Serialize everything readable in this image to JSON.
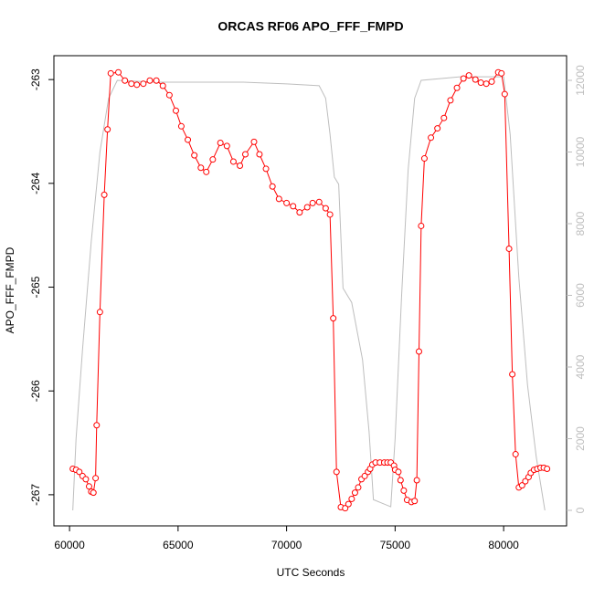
{
  "chart_data": {
    "type": "line",
    "title": "ORCAS RF06 APO_FFF_FMPD",
    "x_label": "UTC Seconds",
    "y_label": "APO_FFF_FMPD",
    "xlim": [
      59280,
      82900
    ],
    "xticks": [
      60000,
      65000,
      70000,
      75000,
      80000
    ],
    "ylim": [
      -267.3,
      -262.77
    ],
    "yticks": [
      -267,
      -266,
      -265,
      -264,
      -263
    ],
    "y2lim": [
      -433,
      12688
    ],
    "y2ticks": [
      0,
      2000,
      4000,
      6000,
      8000,
      10000,
      12000
    ],
    "series": [
      {
        "name": "APO_FFF_FMPD",
        "color": "#ff0000",
        "marker": "circle",
        "x": [
          60150,
          60300,
          60450,
          60600,
          60750,
          60900,
          61000,
          61100,
          61200,
          61250,
          61400,
          61600,
          61750,
          61900,
          62250,
          62550,
          62850,
          63100,
          63400,
          63700,
          64000,
          64300,
          64600,
          64900,
          65150,
          65450,
          65750,
          66050,
          66300,
          66600,
          66950,
          67250,
          67550,
          67850,
          68100,
          68500,
          68750,
          69050,
          69350,
          69650,
          70000,
          70300,
          70600,
          70950,
          71200,
          71500,
          71800,
          72000,
          72150,
          72300,
          72500,
          72700,
          72850,
          73000,
          73150,
          73300,
          73450,
          73600,
          73750,
          73850,
          73950,
          74100,
          74300,
          74500,
          74650,
          74800,
          74950,
          75000,
          75150,
          75250,
          75400,
          75550,
          75750,
          75900,
          76000,
          76100,
          76200,
          76350,
          76650,
          76950,
          77250,
          77550,
          77850,
          78150,
          78400,
          78700,
          78950,
          79200,
          79450,
          79750,
          79900,
          80050,
          80250,
          80400,
          80550,
          80700,
          80850,
          81000,
          81150,
          81250,
          81400,
          81550,
          81700,
          81850,
          82000
        ],
        "values": [
          -266.75,
          -266.76,
          -266.78,
          -266.82,
          -266.85,
          -266.92,
          -266.97,
          -266.98,
          -266.84,
          -266.33,
          -265.24,
          -264.11,
          -263.48,
          -262.94,
          -262.93,
          -263.01,
          -263.04,
          -263.05,
          -263.04,
          -263.01,
          -263.01,
          -263.06,
          -263.15,
          -263.3,
          -263.45,
          -263.58,
          -263.73,
          -263.85,
          -263.89,
          -263.77,
          -263.61,
          -263.64,
          -263.79,
          -263.83,
          -263.72,
          -263.6,
          -263.72,
          -263.86,
          -264.03,
          -264.15,
          -264.19,
          -264.22,
          -264.28,
          -264.23,
          -264.19,
          -264.18,
          -264.24,
          -264.3,
          -265.3,
          -266.78,
          -267.12,
          -267.13,
          -267.09,
          -267.04,
          -266.98,
          -266.93,
          -266.85,
          -266.82,
          -266.78,
          -266.75,
          -266.71,
          -266.69,
          -266.69,
          -266.69,
          -266.69,
          -266.69,
          -266.72,
          -266.76,
          -266.78,
          -266.86,
          -266.96,
          -267.05,
          -267.07,
          -267.06,
          -266.86,
          -265.62,
          -264.41,
          -263.76,
          -263.56,
          -263.47,
          -263.37,
          -263.2,
          -263.08,
          -262.99,
          -262.96,
          -263.0,
          -263.03,
          -263.04,
          -263.02,
          -262.93,
          -262.94,
          -263.14,
          -264.63,
          -265.84,
          -266.61,
          -266.93,
          -266.91,
          -266.87,
          -266.83,
          -266.79,
          -266.76,
          -266.75,
          -266.74,
          -266.74,
          -266.75
        ]
      },
      {
        "axis": "y2",
        "color": "#bebebe",
        "x": [
          60150,
          60300,
          60600,
          61000,
          61400,
          61800,
          62200,
          64000,
          66000,
          68000,
          70000,
          71500,
          71800,
          72000,
          72200,
          72400,
          72600,
          73000,
          73500,
          73800,
          74000,
          74400,
          74800,
          75000,
          75300,
          75600,
          75900,
          76200,
          78000,
          80000,
          80300,
          80700,
          81100,
          81500,
          81900
        ],
        "values": [
          0,
          2000,
          4500,
          7500,
          10000,
          11500,
          12000,
          11950,
          11950,
          11950,
          11900,
          11850,
          11500,
          10500,
          9300,
          9100,
          6200,
          5800,
          4200,
          2200,
          300,
          200,
          100,
          2000,
          6000,
          9500,
          11500,
          12000,
          12100,
          12100,
          10500,
          6500,
          3500,
          1500,
          0
        ]
      }
    ]
  }
}
